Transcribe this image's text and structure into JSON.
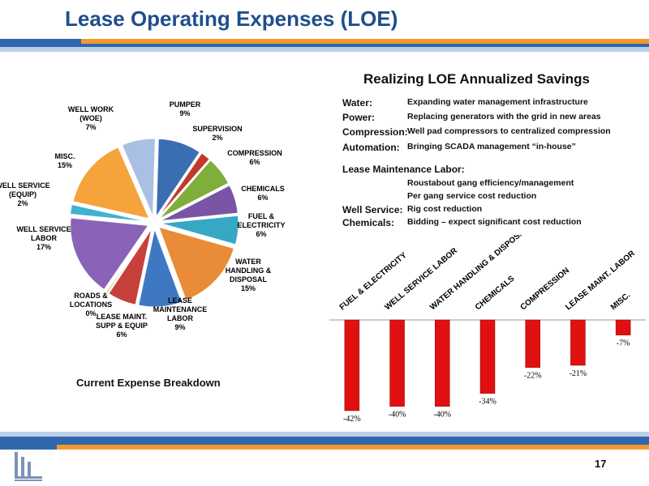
{
  "page": {
    "title": "Lease Operating Expenses (LOE)",
    "page_number": "17"
  },
  "colors": {
    "title": "#1f4e8c",
    "band_blue": "#2f66ad",
    "band_orange": "#f29a2e",
    "bar_red": "#e01010"
  },
  "savings": {
    "title": "Realizing LOE Annualized Savings",
    "rows": [
      {
        "key": "Water:",
        "value": "Expanding water management infrastructure"
      },
      {
        "key": "Power:",
        "value": "Replacing generators with the grid in new areas"
      },
      {
        "key": "Compression:",
        "value": "Well pad compressors to centralized compression"
      },
      {
        "key": "Automation:",
        "value": "Bringing SCADA management “in-house”"
      },
      {
        "key": "Lease Maintenance Labor:",
        "value": ""
      },
      {
        "key": "",
        "value": "Roustabout gang efficiency/management"
      },
      {
        "key": "",
        "value": "Per gang service cost reduction"
      },
      {
        "key": "Well Service:",
        "value": "Rig cost reduction"
      },
      {
        "key": "Chemicals:",
        "value": "Bidding – expect significant cost reduction"
      }
    ]
  },
  "chart_data": [
    {
      "type": "pie",
      "title": "Current Expense Breakdown",
      "slices": [
        {
          "label": "PUMPER",
          "pct_label": "9%",
          "value": 9,
          "color": "#3b6db3"
        },
        {
          "label": "SUPERVISION",
          "pct_label": "2%",
          "value": 2,
          "color": "#c0392b"
        },
        {
          "label": "COMPRESSION",
          "pct_label": "6%",
          "value": 6,
          "color": "#7fae3c"
        },
        {
          "label": "CHEMICALS",
          "pct_label": "6%",
          "value": 6,
          "color": "#7a55a5"
        },
        {
          "label": "FUEL & ELECTRICITY",
          "pct_label": "6%",
          "value": 6,
          "color": "#36a8c6"
        },
        {
          "label": "WATER HANDLING & DISPOSAL",
          "pct_label": "15%",
          "value": 15,
          "color": "#e98b37"
        },
        {
          "label": "LEASE MAINTENANCE LABOR",
          "pct_label": "9%",
          "value": 9,
          "color": "#3f78c2"
        },
        {
          "label": "LEASE MAINT. SUPP & EQUIP",
          "pct_label": "6%",
          "value": 6,
          "color": "#c8403a"
        },
        {
          "label": "ROADS & LOCATIONS",
          "pct_label": "0%",
          "value": 0.3,
          "color": "#8fb64c"
        },
        {
          "label": "WELL SERVICE LABOR",
          "pct_label": "17%",
          "value": 17,
          "color": "#8a62b8"
        },
        {
          "label": "WELL SERVICE (EQUIP)",
          "pct_label": "2%",
          "value": 2,
          "color": "#3fb2cf"
        },
        {
          "label": "MISC.",
          "pct_label": "15%",
          "value": 15,
          "color": "#f5a33b"
        },
        {
          "label": "WELL WORK (WOE)",
          "pct_label": "7%",
          "value": 7,
          "color": "#a9bfe3"
        }
      ]
    },
    {
      "type": "bar",
      "categories": [
        "FUEL & ELECTRICITY",
        "WELL SERVICE LABOR",
        "WATER HANDLING & DISPOSAL",
        "CHEMICALS",
        "COMPRESSION",
        "LEASE MAINT. LABOR",
        "MISC."
      ],
      "values": [
        -42,
        -40,
        -40,
        -34,
        -22,
        -21,
        -7
      ],
      "value_labels": [
        "-42%",
        "-40%",
        "-40%",
        "-34%",
        "-22%",
        "-21%",
        "-7%"
      ],
      "ylim": [
        -45,
        0
      ]
    }
  ]
}
